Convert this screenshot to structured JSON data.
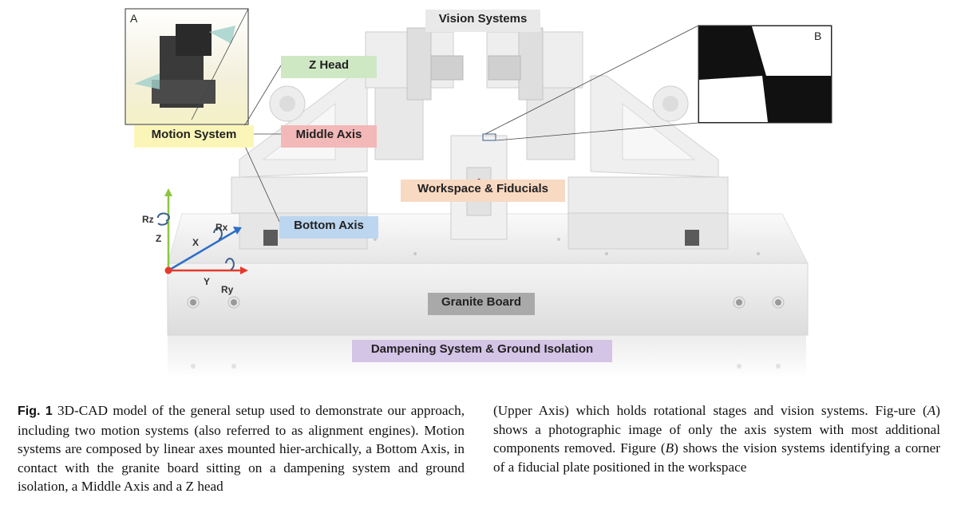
{
  "figure": {
    "labels": {
      "vision_systems": "Vision Systems",
      "z_head": "Z Head",
      "motion_system": "Motion System",
      "middle_axis": "Middle Axis",
      "workspace": "Workspace & Fiducials",
      "bottom_axis": "Bottom Axis",
      "granite_board": "Granite Board",
      "dampening": "Dampening System & Ground Isolation"
    },
    "inset_a_letter": "A",
    "inset_b_letter": "B",
    "axes": {
      "rz": "Rz",
      "z": "Z",
      "x": "X",
      "rx": "Rx",
      "y": "Y",
      "ry": "Ry"
    },
    "colors": {
      "z_axis": "#8cc63f",
      "x_axis": "#2e6fc7",
      "y_axis": "#e53a2c",
      "rotation_icon": "#3a5f8a"
    }
  },
  "caption": {
    "fig_label": "Fig. 1",
    "left_text": "3D-CAD model of the general setup used to demonstrate our approach, including two motion systems (also referred to as alignment engines). Motion systems are composed by linear axes mounted hier-archically, a Bottom Axis, in contact with the granite board sitting on a dampening system and ground isolation, a Middle Axis and a Z head",
    "right_text_1": "(Upper Axis) which holds rotational stages and vision systems. Fig-ure (",
    "right_italic_a": "A",
    "right_text_2": ") shows a photographic image of only the axis system with most additional components removed. Figure (",
    "right_italic_b": "B",
    "right_text_3": ") shows the vision systems identifying a corner of a fiducial plate positioned in the workspace"
  }
}
